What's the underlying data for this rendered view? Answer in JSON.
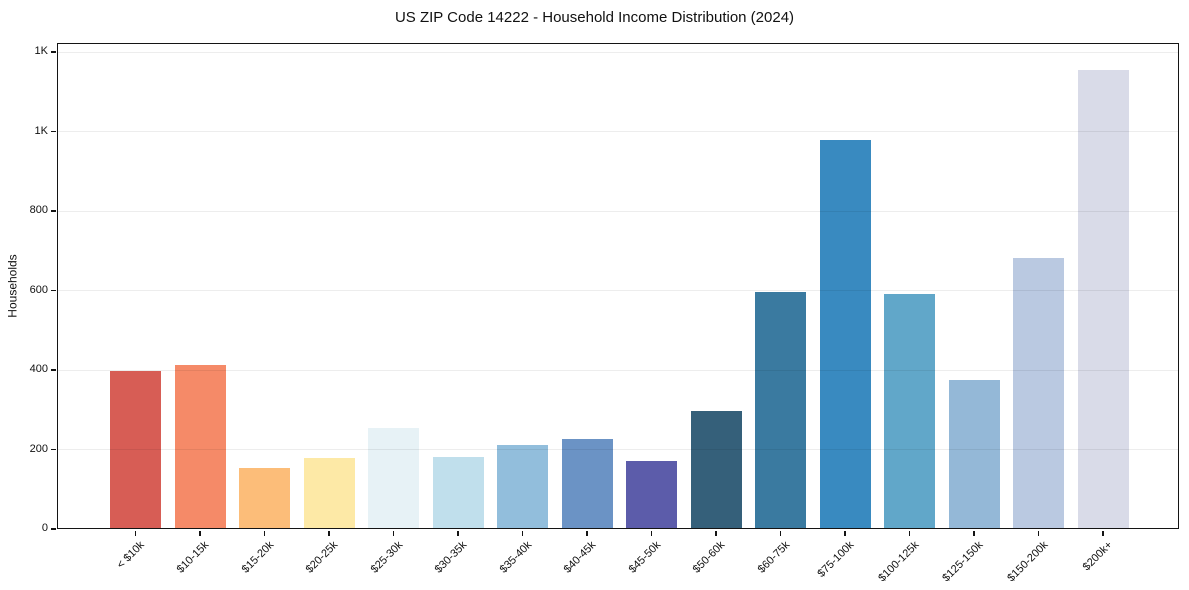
{
  "chart_data": {
    "type": "bar",
    "title": "US ZIP Code 14222 - Household Income Distribution (2024)",
    "xlabel": "",
    "ylabel": "Households",
    "categories": [
      "< $10k",
      "$10-15k",
      "$15-20k",
      "$20-25k",
      "$25-30k",
      "$30-35k",
      "$35-40k",
      "$40-45k",
      "$45-50k",
      "$50-60k",
      "$60-75k",
      "$75-100k",
      "$100-125k",
      "$125-150k",
      "$150-200k",
      "$200k+"
    ],
    "values": [
      398,
      412,
      154,
      179,
      254,
      181,
      212,
      227,
      170,
      297,
      597,
      978,
      592,
      376,
      683,
      1154
    ],
    "bar_colors": [
      "#d75d55",
      "#f58a68",
      "#fcbd79",
      "#fde9a6",
      "#e7f2f6",
      "#c0dfec",
      "#92bedc",
      "#6b93c5",
      "#5c5caa",
      "#35607a",
      "#3a7aa0",
      "#398ac0",
      "#61a7c9",
      "#94b8d7",
      "#bac9e1",
      "#d9dbe8"
    ],
    "yticks": {
      "values": [
        0,
        200,
        400,
        600,
        800,
        1000,
        1200
      ],
      "labels": [
        "0",
        "200",
        "400",
        "600",
        "800",
        "1K",
        "1K"
      ]
    },
    "ylim": [
      0,
      1223
    ],
    "grid": "horizontal",
    "legend": "none",
    "styles": {
      "grid_color": "rgba(0,0,0,0.07)",
      "spine_color": "#141414",
      "text_color": "#111111",
      "background": "#ffffff"
    }
  }
}
